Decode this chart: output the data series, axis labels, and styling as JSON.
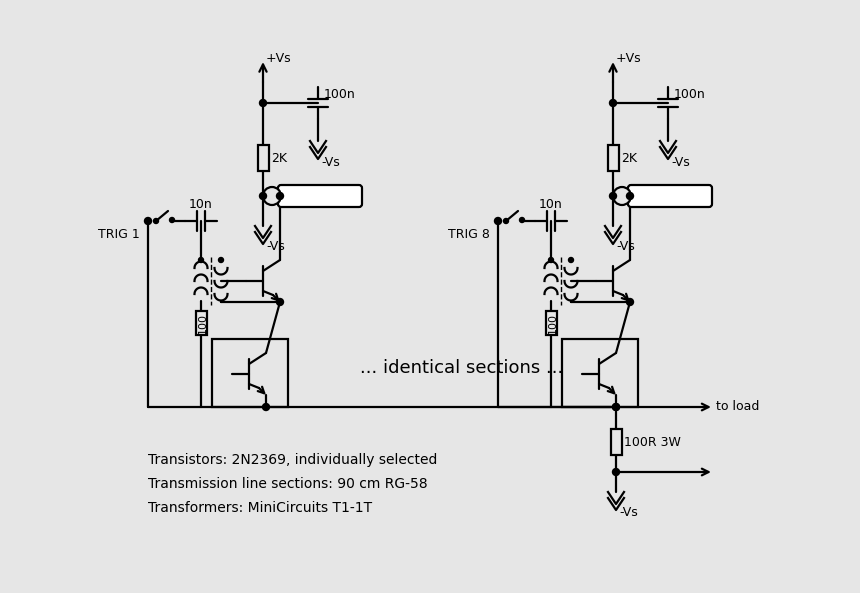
{
  "bg_color": "#e6e6e6",
  "line_color": "#000000",
  "lw": 1.6,
  "ann1": "Transistors: 2N2369, individually selected",
  "ann2": "Transmission line sections: 90 cm RG-58",
  "ann3": "Transformers: MiniCircuits T1-1T",
  "ann_mid": "... identical sections ...",
  "trig1_label": "TRIG 1",
  "trig8_label": "TRIG 8",
  "label_100n": "100n",
  "label_2k": "2K",
  "label_vs_neg": "-Vs",
  "label_vs_pos": "+Vs",
  "label_100": "100",
  "label_10n": "10n",
  "label_100r3w": "100R 3W",
  "label_to_load": "to load"
}
